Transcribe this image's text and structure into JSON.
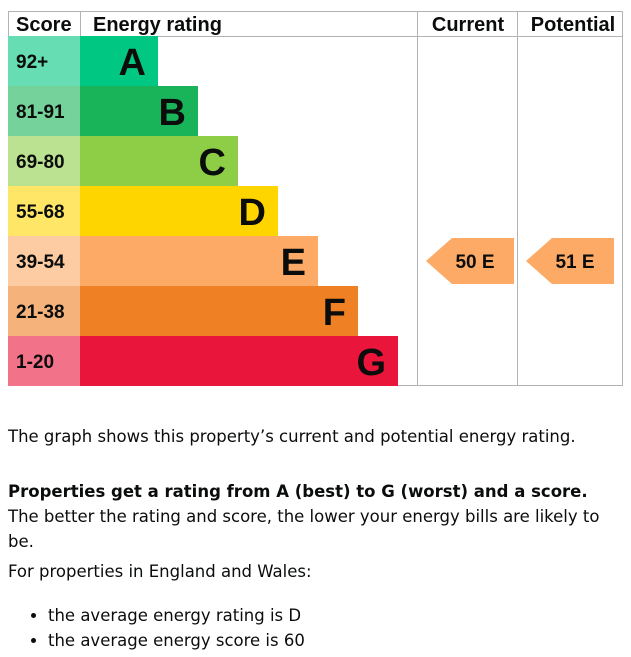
{
  "chart_data": {
    "type": "bar",
    "columns": {
      "score": "Score",
      "rating": "Energy rating",
      "current": "Current",
      "potential": "Potential"
    },
    "bands": [
      {
        "range": "92+",
        "letter": "A",
        "color": "#00c781",
        "score_bg": "#66ddb3"
      },
      {
        "range": "81-91",
        "letter": "B",
        "color": "#19b459",
        "score_bg": "#75d29b"
      },
      {
        "range": "69-80",
        "letter": "C",
        "color": "#8dce46",
        "score_bg": "#bbe290"
      },
      {
        "range": "55-68",
        "letter": "D",
        "color": "#ffd500",
        "score_bg": "#ffe666"
      },
      {
        "range": "39-54",
        "letter": "E",
        "color": "#fcaa65",
        "score_bg": "#fdcca3"
      },
      {
        "range": "21-38",
        "letter": "F",
        "color": "#ef8023",
        "score_bg": "#f5b37b"
      },
      {
        "range": "1-20",
        "letter": "G",
        "color": "#e9153b",
        "score_bg": "#f27389"
      }
    ],
    "current": {
      "score": 50,
      "band": "E",
      "label": "50  E"
    },
    "potential": {
      "score": 51,
      "band": "E",
      "label": "51  E"
    }
  },
  "description": {
    "graph_text": "The graph shows this property’s current and potential energy rating.",
    "rating_bold": "Properties get a rating from A (best) to G (worst) and a score.",
    "rating_rest": " The better the rating and score, the lower your energy bills are likely to be.",
    "region_text": "For properties in England and Wales:",
    "averages": [
      "the average energy rating is D",
      "the average energy score is 60"
    ]
  },
  "colors": {
    "border": "#b1b4b6",
    "text": "#0b0c0c",
    "marker": "#fcaa65"
  }
}
